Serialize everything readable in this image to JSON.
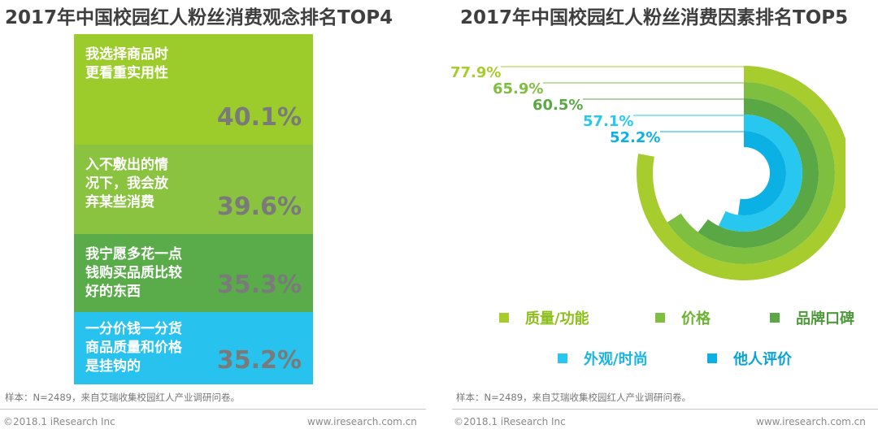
{
  "left_title": "2017年中国校园红人粉丝消费观念排名TOP4",
  "right_title": "2017年中国校园红人粉丝消费因素排名TOP5",
  "chart_data": [
    {
      "type": "bar",
      "title": "2017年中国校园红人粉丝消费观念排名TOP4",
      "categories": [
        "我选择商品时更看重实用性",
        "入不敷出的情况下，我会放弃某些消费",
        "我宁愿多花一点钱购买品质比较好的东西",
        "一分价钱一分货商品质量和价格是挂钩的"
      ],
      "values": [
        40.1,
        39.6,
        35.3,
        35.2
      ],
      "items": [
        {
          "lines": [
            "我选择商品时",
            "更看重实用性"
          ],
          "value_label": "40.1%",
          "color": "#9ccc2c"
        },
        {
          "lines": [
            "入不敷出的情",
            "况下，我会放",
            "弃某些消费"
          ],
          "value_label": "39.6%",
          "color": "#89c33f"
        },
        {
          "lines": [
            "我宁愿多花一点",
            "钱购买品质比较",
            "好的东西"
          ],
          "value_label": "35.3%",
          "color": "#5aac4b"
        },
        {
          "lines": [
            "一分价钱一分货",
            "商品质量和价格",
            "是挂钩的"
          ],
          "value_label": "35.2%",
          "color": "#27c3ee"
        }
      ]
    },
    {
      "type": "pie",
      "title": "2017年中国校园红人粉丝消费因素排名TOP5",
      "categories": [
        "质量/功能",
        "价格",
        "品牌口碑",
        "外观/时尚",
        "他人评价"
      ],
      "values": [
        77.9,
        65.9,
        60.5,
        57.1,
        52.2
      ],
      "value_labels": [
        "77.9%",
        "65.9%",
        "60.5%",
        "57.1%",
        "52.2%"
      ],
      "colors": [
        "#a6cd2d",
        "#7fbf3f",
        "#5aa845",
        "#27c7f0",
        "#0bb1e5"
      ]
    }
  ],
  "source_left": "样本：N=2489，来自艾瑞收集校园红人产业调研问卷。",
  "source_right": "样本：N=2489，来自艾瑞收集校园红人产业调研问卷。",
  "footer_left": "©2018.1 iResearch Inc",
  "footer_right": "www.iresearch.com.cn"
}
